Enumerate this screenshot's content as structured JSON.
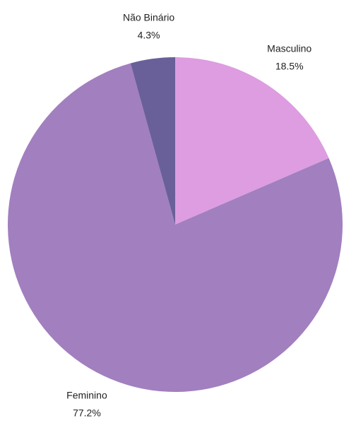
{
  "chart_data": {
    "type": "pie",
    "categories": [
      "Masculino",
      "Feminino",
      "Não Binário"
    ],
    "values": [
      18.5,
      77.2,
      4.3
    ],
    "value_labels": [
      "18.5%",
      "77.2%",
      "4.3%"
    ],
    "colors": [
      "#dd9de0",
      "#a27fbf",
      "#6a6099"
    ]
  }
}
